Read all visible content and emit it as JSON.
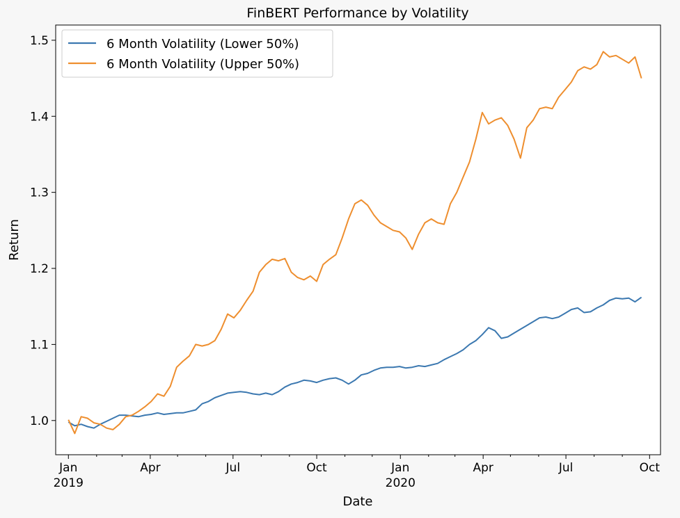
{
  "chart_data": {
    "type": "line",
    "title": "FinBERT Performance by Volatility",
    "xlabel": "Date",
    "ylabel": "Return",
    "xlim": [
      "2018-12-18",
      "2020-10-13"
    ],
    "ylim": [
      0.955,
      1.52
    ],
    "grid": false,
    "legend_position": "top-left",
    "x_ticks": [
      {
        "date": "2019-01-01",
        "label": "Jan",
        "sublabel": "2019"
      },
      {
        "date": "2019-04-01",
        "label": "Apr",
        "sublabel": ""
      },
      {
        "date": "2019-07-01",
        "label": "Jul",
        "sublabel": ""
      },
      {
        "date": "2019-10-01",
        "label": "Oct",
        "sublabel": ""
      },
      {
        "date": "2020-01-01",
        "label": "Jan",
        "sublabel": "2020"
      },
      {
        "date": "2020-04-01",
        "label": "Apr",
        "sublabel": ""
      },
      {
        "date": "2020-07-01",
        "label": "Jul",
        "sublabel": ""
      },
      {
        "date": "2020-10-01",
        "label": "Oct",
        "sublabel": ""
      }
    ],
    "y_ticks": [
      {
        "value": 1.0,
        "label": "1.0"
      },
      {
        "value": 1.1,
        "label": "1.1"
      },
      {
        "value": 1.2,
        "label": "1.2"
      },
      {
        "value": 1.3,
        "label": "1.3"
      },
      {
        "value": 1.4,
        "label": "1.4"
      },
      {
        "value": 1.5,
        "label": "1.5"
      }
    ],
    "series": [
      {
        "name": "6 Month Volatility (Lower 50%)",
        "color": "#3b78b0",
        "x": [
          "2019-01-01",
          "2019-01-08",
          "2019-01-15",
          "2019-01-22",
          "2019-01-29",
          "2019-02-05",
          "2019-02-12",
          "2019-02-19",
          "2019-02-26",
          "2019-03-05",
          "2019-03-12",
          "2019-03-19",
          "2019-03-26",
          "2019-04-02",
          "2019-04-09",
          "2019-04-16",
          "2019-04-23",
          "2019-04-30",
          "2019-05-07",
          "2019-05-14",
          "2019-05-21",
          "2019-05-28",
          "2019-06-04",
          "2019-06-11",
          "2019-06-18",
          "2019-06-25",
          "2019-07-02",
          "2019-07-09",
          "2019-07-16",
          "2019-07-23",
          "2019-07-30",
          "2019-08-06",
          "2019-08-13",
          "2019-08-20",
          "2019-08-27",
          "2019-09-03",
          "2019-09-10",
          "2019-09-17",
          "2019-09-24",
          "2019-10-01",
          "2019-10-08",
          "2019-10-15",
          "2019-10-22",
          "2019-10-29",
          "2019-11-05",
          "2019-11-12",
          "2019-11-19",
          "2019-11-26",
          "2019-12-03",
          "2019-12-10",
          "2019-12-17",
          "2019-12-24",
          "2019-12-31",
          "2020-01-07",
          "2020-01-14",
          "2020-01-21",
          "2020-01-28",
          "2020-02-04",
          "2020-02-11",
          "2020-02-18",
          "2020-02-25",
          "2020-03-03",
          "2020-03-10",
          "2020-03-17",
          "2020-03-24",
          "2020-03-31",
          "2020-04-07",
          "2020-04-14",
          "2020-04-21",
          "2020-04-28",
          "2020-05-05",
          "2020-05-12",
          "2020-05-19",
          "2020-05-26",
          "2020-06-02",
          "2020-06-09",
          "2020-06-16",
          "2020-06-23",
          "2020-06-30",
          "2020-07-07",
          "2020-07-14",
          "2020-07-21",
          "2020-07-28",
          "2020-08-04",
          "2020-08-11",
          "2020-08-18",
          "2020-08-25",
          "2020-09-01",
          "2020-09-08",
          "2020-09-15",
          "2020-09-22"
        ],
        "values": [
          0.998,
          0.993,
          0.995,
          0.992,
          0.99,
          0.995,
          0.999,
          1.003,
          1.007,
          1.007,
          1.006,
          1.005,
          1.007,
          1.008,
          1.01,
          1.008,
          1.009,
          1.01,
          1.01,
          1.012,
          1.014,
          1.022,
          1.025,
          1.03,
          1.033,
          1.036,
          1.037,
          1.038,
          1.037,
          1.035,
          1.034,
          1.036,
          1.034,
          1.038,
          1.044,
          1.048,
          1.05,
          1.053,
          1.052,
          1.05,
          1.053,
          1.055,
          1.056,
          1.053,
          1.048,
          1.053,
          1.06,
          1.062,
          1.066,
          1.069,
          1.07,
          1.07,
          1.071,
          1.069,
          1.07,
          1.072,
          1.071,
          1.073,
          1.075,
          1.08,
          1.084,
          1.088,
          1.093,
          1.1,
          1.105,
          1.113,
          1.122,
          1.118,
          1.108,
          1.11,
          1.115,
          1.12,
          1.125,
          1.13,
          1.135,
          1.136,
          1.134,
          1.136,
          1.141,
          1.146,
          1.148,
          1.142,
          1.143,
          1.148,
          1.152,
          1.158,
          1.161,
          1.16,
          1.161,
          1.156,
          1.162
        ]
      },
      {
        "name": "6 Month Volatility (Upper 50%)",
        "color": "#ee8e2e",
        "x": [
          "2019-01-01",
          "2019-01-08",
          "2019-01-15",
          "2019-01-22",
          "2019-01-29",
          "2019-02-05",
          "2019-02-12",
          "2019-02-19",
          "2019-02-26",
          "2019-03-05",
          "2019-03-12",
          "2019-03-19",
          "2019-03-26",
          "2019-04-02",
          "2019-04-09",
          "2019-04-16",
          "2019-04-23",
          "2019-04-30",
          "2019-05-07",
          "2019-05-14",
          "2019-05-21",
          "2019-05-28",
          "2019-06-04",
          "2019-06-11",
          "2019-06-18",
          "2019-06-25",
          "2019-07-02",
          "2019-07-09",
          "2019-07-16",
          "2019-07-23",
          "2019-07-30",
          "2019-08-06",
          "2019-08-13",
          "2019-08-20",
          "2019-08-27",
          "2019-09-03",
          "2019-09-10",
          "2019-09-17",
          "2019-09-24",
          "2019-10-01",
          "2019-10-08",
          "2019-10-15",
          "2019-10-22",
          "2019-10-29",
          "2019-11-05",
          "2019-11-12",
          "2019-11-19",
          "2019-11-26",
          "2019-12-03",
          "2019-12-10",
          "2019-12-17",
          "2019-12-24",
          "2019-12-31",
          "2020-01-07",
          "2020-01-14",
          "2020-01-21",
          "2020-01-28",
          "2020-02-04",
          "2020-02-11",
          "2020-02-18",
          "2020-02-25",
          "2020-03-03",
          "2020-03-10",
          "2020-03-17",
          "2020-03-24",
          "2020-03-31",
          "2020-04-07",
          "2020-04-14",
          "2020-04-21",
          "2020-04-28",
          "2020-05-05",
          "2020-05-12",
          "2020-05-19",
          "2020-05-26",
          "2020-06-02",
          "2020-06-09",
          "2020-06-16",
          "2020-06-23",
          "2020-06-30",
          "2020-07-07",
          "2020-07-14",
          "2020-07-21",
          "2020-07-28",
          "2020-08-04",
          "2020-08-11",
          "2020-08-18",
          "2020-08-25",
          "2020-09-01",
          "2020-09-08",
          "2020-09-15",
          "2020-09-22"
        ],
        "values": [
          1.001,
          0.983,
          1.005,
          1.003,
          0.997,
          0.995,
          0.99,
          0.988,
          0.995,
          1.005,
          1.007,
          1.012,
          1.018,
          1.025,
          1.035,
          1.032,
          1.045,
          1.07,
          1.078,
          1.085,
          1.1,
          1.098,
          1.1,
          1.105,
          1.12,
          1.14,
          1.135,
          1.145,
          1.158,
          1.17,
          1.195,
          1.205,
          1.212,
          1.21,
          1.213,
          1.195,
          1.188,
          1.185,
          1.19,
          1.183,
          1.205,
          1.212,
          1.218,
          1.24,
          1.265,
          1.285,
          1.29,
          1.283,
          1.27,
          1.26,
          1.255,
          1.25,
          1.248,
          1.24,
          1.225,
          1.245,
          1.26,
          1.265,
          1.26,
          1.258,
          1.285,
          1.3,
          1.32,
          1.34,
          1.37,
          1.405,
          1.39,
          1.395,
          1.398,
          1.388,
          1.37,
          1.345,
          1.385,
          1.395,
          1.41,
          1.412,
          1.41,
          1.425,
          1.435,
          1.445,
          1.46,
          1.465,
          1.462,
          1.468,
          1.485,
          1.478,
          1.48,
          1.475,
          1.47,
          1.478,
          1.45
        ]
      }
    ]
  }
}
